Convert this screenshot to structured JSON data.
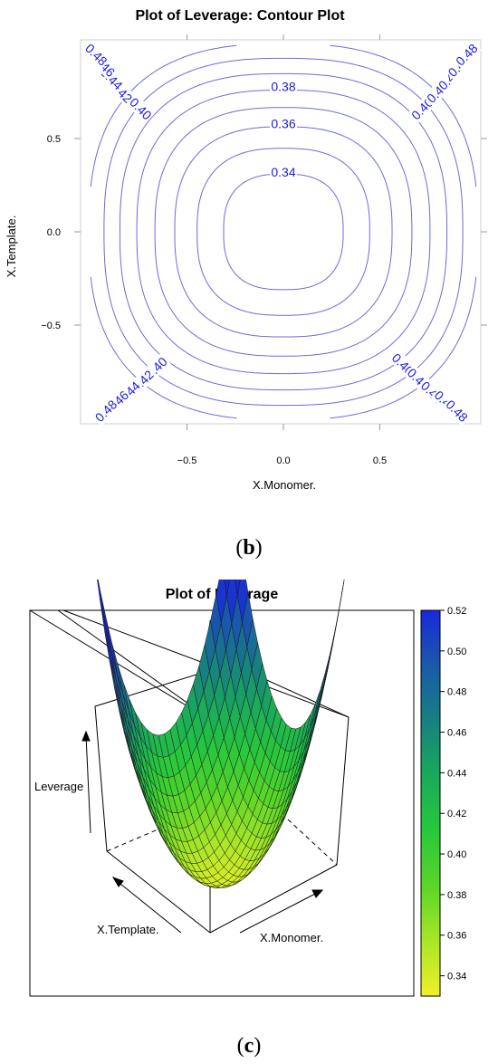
{
  "chart_data": [
    {
      "type": "contour",
      "panel_label": "b",
      "title": "Plot of Leverage: Contour Plot",
      "xlabel": "X.Monomer.",
      "ylabel": "X.Template.",
      "xlim": [
        -1,
        1
      ],
      "ylim": [
        -1,
        1
      ],
      "xticks": [
        {
          "value": -0.5,
          "label": "−0.5"
        },
        {
          "value": 0.0,
          "label": "0.0"
        },
        {
          "value": 0.5,
          "label": "0.5"
        }
      ],
      "yticks": [
        {
          "value": 0.5,
          "label": "0.5"
        },
        {
          "value": 0.0,
          "label": "0.0"
        },
        {
          "value": -0.5,
          "label": "−0.5"
        }
      ],
      "levels": [
        0.34,
        0.36,
        0.38,
        0.4,
        0.42,
        0.44,
        0.46,
        0.48
      ],
      "line_color": "#6b6bdc",
      "label_color": "#1a1ae6",
      "labels": [
        {
          "text": "0.34",
          "x": 0.0,
          "y": 0.32
        },
        {
          "text": "0.36",
          "x": 0.0,
          "y": 0.58
        },
        {
          "text": "0.38",
          "x": 0.0,
          "y": 0.78
        },
        {
          "text": "0.40",
          "x": -0.74,
          "y": 0.66
        },
        {
          "text": "0.42",
          "x": -0.84,
          "y": 0.75
        },
        {
          "text": "0.44",
          "x": -0.89,
          "y": 0.82
        },
        {
          "text": "0.46",
          "x": -0.93,
          "y": 0.89
        },
        {
          "text": "0.48",
          "x": -0.97,
          "y": 0.95
        },
        {
          "text": "0.40",
          "x": 0.72,
          "y": 0.66
        },
        {
          "text": "0.42",
          "x": 0.8,
          "y": 0.75
        },
        {
          "text": "0.44",
          "x": 0.86,
          "y": 0.82
        },
        {
          "text": "0.46",
          "x": 0.91,
          "y": 0.89
        },
        {
          "text": "0.48",
          "x": 0.95,
          "y": 0.95
        },
        {
          "text": "0.40",
          "x": -0.66,
          "y": -0.73
        },
        {
          "text": "0.42",
          "x": -0.73,
          "y": -0.8
        },
        {
          "text": "0.44",
          "x": -0.8,
          "y": -0.86
        },
        {
          "text": "0.46",
          "x": -0.86,
          "y": -0.91
        },
        {
          "text": "0.48",
          "x": -0.92,
          "y": -0.96
        },
        {
          "text": "0.40",
          "x": 0.62,
          "y": -0.71
        },
        {
          "text": "0.42",
          "x": 0.7,
          "y": -0.79
        },
        {
          "text": "0.44",
          "x": 0.77,
          "y": -0.86
        },
        {
          "text": "0.46",
          "x": 0.84,
          "y": -0.91
        },
        {
          "text": "0.48",
          "x": 0.9,
          "y": -0.96
        }
      ]
    },
    {
      "type": "surface",
      "panel_label": "c",
      "title": "Plot of Leverage",
      "xlabel": "X.Monomer.",
      "ylabel": "X.Template.",
      "zlabel": "Leverage",
      "z_range": [
        0.33,
        0.52
      ],
      "colorbar": {
        "min": 0.33,
        "max": 0.52,
        "ticks": [
          "0.34",
          "0.36",
          "0.38",
          "0.40",
          "0.42",
          "0.44",
          "0.46",
          "0.48",
          "0.50",
          "0.52"
        ],
        "colors": [
          "#f0f028",
          "#a8e628",
          "#5ad628",
          "#28c83c",
          "#1aaa5a",
          "#178080",
          "#1a5aa8",
          "#1a28dc"
        ]
      }
    }
  ],
  "captions": {
    "b": "b",
    "c": "c"
  }
}
